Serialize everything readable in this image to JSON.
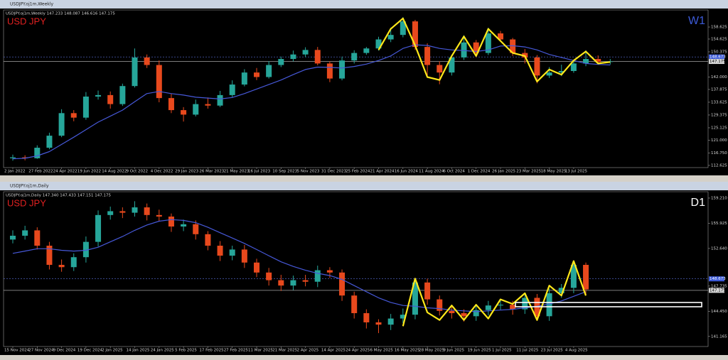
{
  "chart_data": [
    {
      "type": "candlestick",
      "window_title": "USDJPY.oj1m,Weekly",
      "title": "USDJPY.oj1m,Weekly  147.233 148.087 146.616 147.175",
      "symbol_label": "USD JPY",
      "timeframe": "W1",
      "timeframe_color": "#3c5ad8",
      "categories": [
        "2 Jan 2022",
        null,
        "27 Feb 2022",
        null,
        "24 Apr 2022",
        null,
        "19 Jun 2022",
        null,
        "14 Aug 2022",
        null,
        "9 Oct 2022",
        null,
        "4 Dec 2022",
        null,
        "29 Jan 2023",
        null,
        "26 Mar 2023",
        null,
        "21 May 2023",
        null,
        "16 Jul 2023",
        null,
        "10 Sep 2023",
        null,
        "5 Nov 2023",
        null,
        "31 Dec 2023",
        null,
        "25 Feb 2024",
        null,
        "21 Apr 2024",
        null,
        "16 Jun 2024",
        null,
        "11 Aug 2024",
        null,
        "6 Oct 2024",
        null,
        "1 Dec 2024",
        null,
        "26 Jan 2025",
        null,
        "23 Mar 2025",
        null,
        "18 May 2025",
        null,
        "13 Jul 2025",
        null,
        null,
        null
      ],
      "open": [
        115.0,
        115.3,
        115.0,
        118.5,
        122.5,
        130,
        128.5,
        135.5,
        136,
        133,
        139,
        148.5,
        146,
        135,
        131,
        129.5,
        133,
        132.5,
        136,
        139.5,
        143.5,
        142,
        146,
        148,
        149.5,
        151,
        146.5,
        141.5,
        147.5,
        150,
        151.5,
        154.5,
        156,
        160.5,
        152,
        146,
        143.5,
        148.5,
        153.5,
        150,
        156.5,
        154.5,
        150,
        148.5,
        142.5,
        143.5,
        144,
        146.5,
        148,
        147
      ],
      "high": [
        116.2,
        116.0,
        119.3,
        123.5,
        131.3,
        131.0,
        137.0,
        137.5,
        137.2,
        139.8,
        151.5,
        149.5,
        147.5,
        136.5,
        132.0,
        134.5,
        135.2,
        137.4,
        140.9,
        144.6,
        145.0,
        147.3,
        148.8,
        150.8,
        151.9,
        152.0,
        147.2,
        148.8,
        150.9,
        152.0,
        155.4,
        158.4,
        161.9,
        161.0,
        153.2,
        147.2,
        149.4,
        155.9,
        154.3,
        158.4,
        157.3,
        155.0,
        151.3,
        149.3,
        145.3,
        146.1,
        147.8,
        150.9,
        149.2,
        148.0
      ],
      "low": [
        114.2,
        114.3,
        114.8,
        118.0,
        122.0,
        127.3,
        127.8,
        134.5,
        131.5,
        132.4,
        138.5,
        145.0,
        133.6,
        130.0,
        127.2,
        128.9,
        131.5,
        132.0,
        135.2,
        138.9,
        141.0,
        141.5,
        145.3,
        147.2,
        148.6,
        145.9,
        140.3,
        140.9,
        146.5,
        149.4,
        150.8,
        153.6,
        155.2,
        151.0,
        141.7,
        139.6,
        142.5,
        147.7,
        148.6,
        149.3,
        153.7,
        149.0,
        146.5,
        139.9,
        141.7,
        142.3,
        143.4,
        145.6,
        146.4,
        146.2
      ],
      "close": [
        115.3,
        115.0,
        118.5,
        122.5,
        130,
        128.5,
        135.5,
        136,
        133,
        139,
        148.5,
        146,
        135,
        131,
        129.5,
        133,
        132.5,
        136,
        139.5,
        143.5,
        142,
        146,
        148,
        149.5,
        151,
        146.5,
        141.5,
        147.5,
        150,
        151.5,
        154.5,
        156,
        160.5,
        152,
        146,
        143.5,
        148.5,
        153.5,
        150,
        156.5,
        154.5,
        150,
        148.5,
        142.5,
        143.5,
        144,
        146.5,
        148,
        147,
        147.2
      ],
      "up_color": "#26a69a",
      "down_color": "#e8491d",
      "overlays": [
        {
          "color": "#4658d8",
          "width": 1.2,
          "values": [
            114.8,
            115.0,
            115.8,
            117.2,
            119.6,
            122.0,
            124.5,
            127.0,
            129.0,
            131.0,
            133.8,
            136.5,
            137.2,
            136.5,
            136.0,
            135.3,
            135.0,
            134.7,
            135.2,
            136.5,
            138.0,
            139.5,
            141.0,
            142.8,
            144.5,
            145.3,
            145.2,
            145.0,
            145.5,
            146.3,
            147.5,
            149.0,
            151.5,
            152.7,
            152.5,
            151.5,
            151.0,
            150.8,
            150.5,
            151.0,
            152.3,
            152.4,
            152.0,
            151.0,
            149.5,
            148.5,
            147.5,
            146.5,
            146.2,
            146.0
          ]
        },
        {
          "color": "#ffe81a",
          "width": 2.2,
          "values": [
            null,
            null,
            null,
            null,
            null,
            null,
            null,
            null,
            null,
            null,
            null,
            null,
            null,
            null,
            null,
            null,
            null,
            null,
            null,
            null,
            null,
            null,
            null,
            null,
            null,
            null,
            null,
            null,
            null,
            null,
            151.0,
            158.0,
            161.5,
            152.5,
            142.0,
            141.0,
            149.0,
            155.5,
            149.0,
            158.0,
            154.0,
            150.0,
            149.0,
            140.5,
            144.5,
            142.8,
            147.5,
            150.5,
            146.5,
            147.0
          ]
        }
      ],
      "price_lines": [
        {
          "value": 148.673,
          "label": "148.673"
        },
        {
          "value": 147.175,
          "label": "147.175"
        }
      ],
      "ylim": [
        111.9,
        164.3
      ],
      "yticks": [
        158.625,
        154.625,
        150.375,
        {
          "value": 142,
          "label": "142.000"
        },
        137.875,
        133.625,
        129.375,
        125.125,
        {
          "value": 121,
          "label": "121.000"
        },
        {
          "value": 116.75,
          "label": "116.750"
        },
        112.625
      ]
    },
    {
      "type": "candlestick",
      "window_title": "USDJPY.oj1m,Daily",
      "title": "USDJPY.oj1m,Daily  147.340 147.433 147.151 147.175",
      "symbol_label": "USD JPY",
      "timeframe": "D1",
      "timeframe_color": "#ffffff",
      "categories": [
        "15 Nov 2024",
        null,
        "27 Nov 2024",
        null,
        "9 Dec 2024",
        null,
        "19 Dec 2024",
        null,
        "2 Jan 2025",
        null,
        "14 Jan 2025",
        null,
        "24 Jan 2025",
        null,
        "5 Feb 2025",
        null,
        "17 Feb 2025",
        null,
        "27 Feb 2025",
        null,
        "11 Mar 2025",
        null,
        "21 Mar 2025",
        null,
        "2 Apr 2025",
        null,
        "14 Apr 2025",
        null,
        "24 Apr 2025",
        null,
        "6 May 2025",
        null,
        "16 May 2025",
        null,
        "28 May 2025",
        null,
        "9 Jun 2025",
        null,
        "19 Jun 2025",
        null,
        "1 Jul 2025",
        null,
        "11 Jul 2025",
        null,
        "23 Jul 2025",
        null,
        "4 Aug 2025",
        null
      ],
      "open": [
        153.8,
        154.3,
        155.0,
        153.0,
        150.5,
        150.2,
        151.5,
        153.5,
        157.0,
        157.5,
        157.3,
        158.0,
        157.0,
        156.8,
        155.5,
        155.8,
        154.5,
        153.0,
        151.7,
        152.5,
        150.8,
        149.5,
        148.5,
        147.8,
        148.5,
        148.3,
        149.8,
        149.5,
        146.5,
        144.2,
        143.0,
        142.7,
        143.5,
        144.0,
        148.2,
        146.0,
        144.5,
        144.2,
        143.8,
        144.6,
        145.2,
        145.3,
        144.7,
        146.2,
        143.8,
        146.8,
        147.5,
        150.5
      ],
      "high": [
        155.0,
        155.6,
        155.4,
        153.5,
        151.2,
        152.0,
        154.2,
        157.6,
        158.1,
        158.0,
        158.8,
        158.5,
        157.7,
        157.2,
        156.4,
        156.3,
        154.9,
        153.6,
        153.0,
        153.1,
        151.3,
        150.1,
        149.2,
        149.1,
        149.2,
        150.4,
        150.2,
        149.9,
        147.0,
        144.7,
        143.4,
        144.1,
        144.8,
        148.6,
        148.7,
        146.5,
        145.1,
        144.7,
        145.3,
        145.8,
        146.0,
        145.8,
        146.8,
        146.7,
        147.4,
        148.0,
        151.0,
        150.8
      ],
      "low": [
        153.3,
        153.8,
        152.5,
        149.9,
        149.6,
        149.7,
        150.8,
        152.9,
        156.4,
        156.6,
        156.8,
        156.3,
        156.2,
        154.8,
        154.9,
        153.8,
        152.4,
        151.0,
        151.1,
        150.1,
        148.9,
        147.8,
        147.1,
        147.2,
        147.7,
        147.6,
        148.8,
        145.8,
        143.5,
        142.2,
        141.6,
        142.0,
        142.9,
        143.4,
        145.3,
        143.9,
        143.5,
        143.1,
        143.2,
        143.9,
        144.6,
        144.0,
        144.1,
        143.2,
        143.2,
        146.2,
        146.8,
        146.5
      ],
      "close": [
        154.3,
        155.0,
        153.0,
        150.5,
        150.2,
        151.5,
        153.5,
        157.0,
        157.5,
        157.3,
        158.0,
        157.0,
        156.8,
        155.5,
        155.8,
        154.5,
        153.0,
        151.7,
        152.5,
        150.8,
        149.5,
        148.5,
        147.8,
        148.5,
        148.3,
        149.8,
        149.5,
        146.5,
        144.2,
        143.0,
        142.7,
        143.5,
        144.0,
        148.2,
        146.0,
        144.5,
        144.2,
        143.8,
        144.6,
        145.2,
        145.3,
        144.7,
        146.2,
        143.8,
        146.8,
        147.5,
        150.5,
        147.3
      ],
      "up_color": "#26a69a",
      "down_color": "#e8491d",
      "overlays": [
        {
          "color": "#4658d8",
          "width": 1.2,
          "values": [
            152.0,
            152.3,
            152.6,
            152.6,
            152.4,
            152.3,
            152.4,
            152.8,
            153.5,
            154.2,
            155.0,
            155.7,
            156.2,
            156.4,
            156.3,
            156.0,
            155.4,
            154.7,
            154.0,
            153.3,
            152.5,
            151.7,
            150.9,
            150.3,
            149.8,
            149.4,
            149.1,
            148.6,
            147.8,
            147.0,
            146.2,
            145.6,
            145.2,
            145.1,
            144.9,
            144.8,
            144.6,
            144.5,
            144.4,
            144.5,
            144.6,
            144.7,
            144.9,
            145.1,
            145.4,
            145.8,
            146.4,
            147.0
          ]
        },
        {
          "color": "#ffe81a",
          "width": 2.2,
          "values": [
            null,
            null,
            null,
            null,
            null,
            null,
            null,
            null,
            null,
            null,
            null,
            null,
            null,
            null,
            null,
            null,
            null,
            null,
            null,
            null,
            null,
            null,
            null,
            null,
            null,
            null,
            null,
            null,
            null,
            null,
            null,
            null,
            142.5,
            148.7,
            144.3,
            143.3,
            145.2,
            143.3,
            145.3,
            143.5,
            146.0,
            145.4,
            146.8,
            143.3,
            147.8,
            146.5,
            151.0,
            146.5
          ]
        }
      ],
      "price_lines": [
        {
          "value": 148.673,
          "label": "148.673"
        },
        {
          "value": 147.175,
          "label": "147.175"
        }
      ],
      "ylim": [
        139.85,
        160.04
      ],
      "yticks": [
        {
          "value": 159.21,
          "label": "159.210"
        },
        155.925,
        {
          "value": 152.64,
          "label": "152.640"
        },
        147.735,
        {
          "value": 144.45,
          "label": "144.450"
        },
        141.165
      ]
    }
  ]
}
